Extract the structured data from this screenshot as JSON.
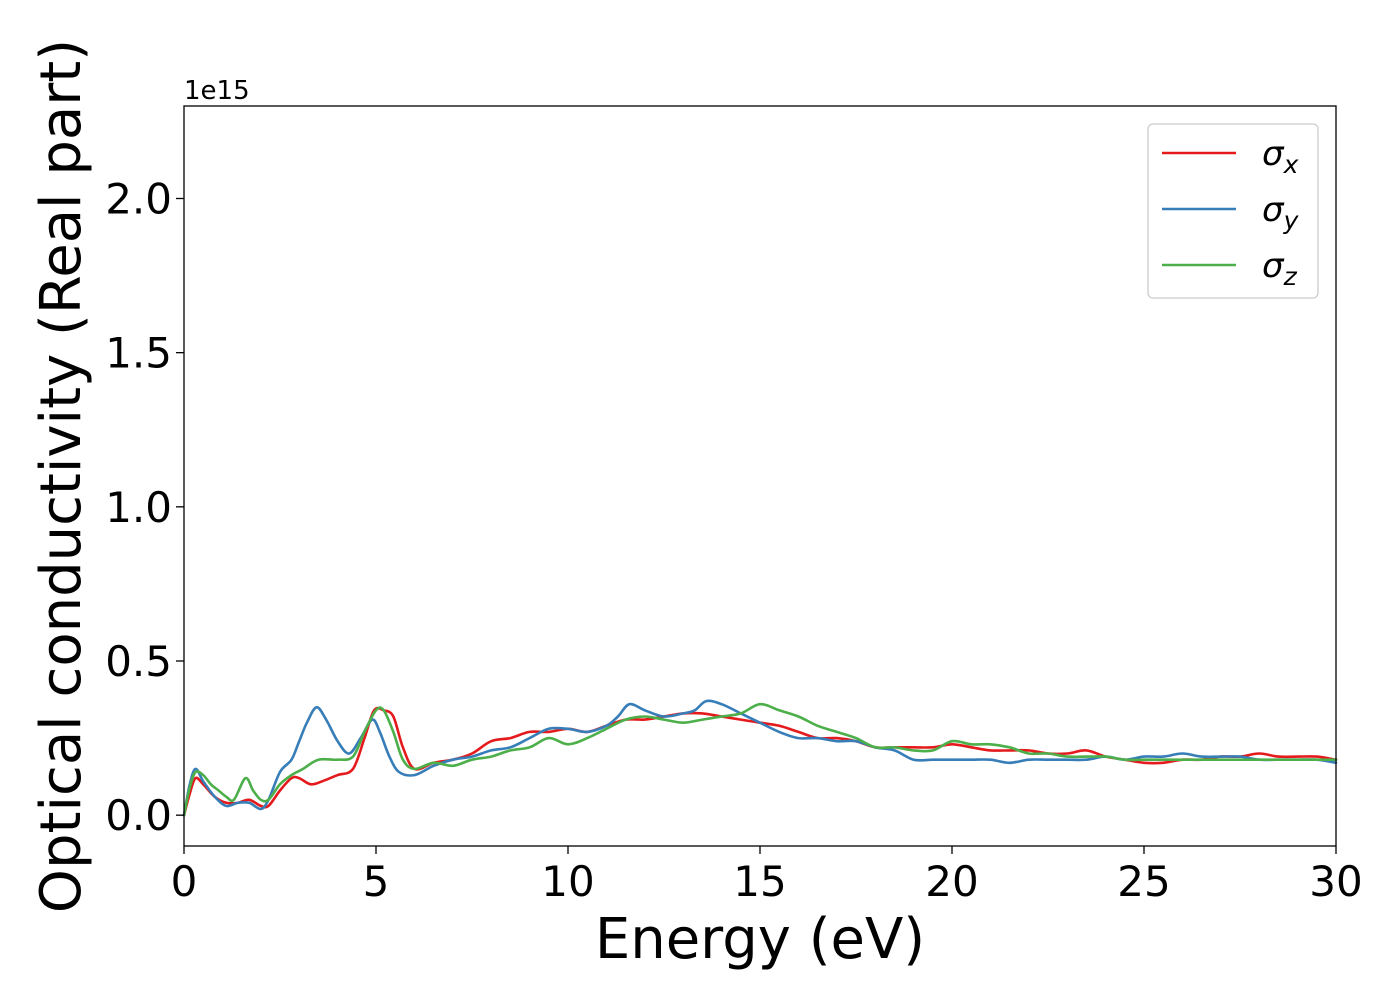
{
  "chart_data": {
    "type": "line",
    "offset_label": "1e15",
    "xlabel": "Energy (eV)",
    "ylabel": "Optical conductivity (Real part)",
    "xlim": [
      0,
      30
    ],
    "ylim": [
      -0.1,
      2.3
    ],
    "xticks": [
      0,
      5,
      10,
      15,
      20,
      25,
      30
    ],
    "yticks": [
      0.0,
      0.5,
      1.0,
      1.5,
      2.0
    ],
    "xtick_labels": [
      "0",
      "5",
      "10",
      "15",
      "20",
      "25",
      "30"
    ],
    "ytick_labels": [
      "0.0",
      "0.5",
      "1.0",
      "1.5",
      "2.0"
    ],
    "legend_position": "top-right",
    "grid": false,
    "series": [
      {
        "name": "σx",
        "base": "σ",
        "sub": "x",
        "color": "#e41a1c",
        "x": [
          0,
          0.15,
          0.3,
          0.5,
          0.8,
          1.1,
          1.4,
          1.7,
          2.0,
          2.2,
          2.5,
          2.8,
          3.0,
          3.3,
          3.6,
          4.0,
          4.4,
          4.7,
          4.95,
          5.2,
          5.45,
          5.7,
          6.0,
          6.5,
          7.0,
          7.5,
          8.0,
          8.5,
          9.0,
          9.5,
          10.0,
          10.5,
          11.0,
          11.5,
          12.0,
          12.5,
          13.0,
          13.5,
          14.0,
          14.5,
          15.0,
          15.5,
          16.0,
          16.5,
          17.0,
          17.5,
          18.0,
          18.5,
          19.0,
          19.5,
          20.0,
          20.5,
          21.0,
          21.5,
          22.0,
          22.5,
          23.0,
          23.5,
          24.0,
          24.5,
          25.0,
          25.5,
          26.0,
          26.5,
          27.0,
          27.5,
          28.0,
          28.5,
          29.0,
          29.5,
          30.0
        ],
        "y": [
          0.0,
          0.07,
          0.12,
          0.1,
          0.06,
          0.04,
          0.04,
          0.05,
          0.03,
          0.03,
          0.08,
          0.12,
          0.12,
          0.1,
          0.11,
          0.13,
          0.15,
          0.25,
          0.34,
          0.34,
          0.32,
          0.22,
          0.15,
          0.17,
          0.18,
          0.2,
          0.24,
          0.25,
          0.27,
          0.27,
          0.28,
          0.27,
          0.29,
          0.31,
          0.31,
          0.32,
          0.33,
          0.33,
          0.32,
          0.31,
          0.3,
          0.29,
          0.27,
          0.25,
          0.25,
          0.24,
          0.22,
          0.22,
          0.22,
          0.22,
          0.23,
          0.22,
          0.21,
          0.21,
          0.21,
          0.2,
          0.2,
          0.21,
          0.19,
          0.18,
          0.17,
          0.17,
          0.18,
          0.18,
          0.19,
          0.19,
          0.2,
          0.19,
          0.19,
          0.19,
          0.18
        ]
      },
      {
        "name": "σy",
        "base": "σ",
        "sub": "y",
        "color": "#377eb8",
        "x": [
          0,
          0.15,
          0.3,
          0.5,
          0.8,
          1.1,
          1.4,
          1.7,
          2.0,
          2.2,
          2.5,
          2.8,
          3.0,
          3.2,
          3.45,
          3.7,
          4.0,
          4.3,
          4.6,
          4.9,
          5.1,
          5.35,
          5.6,
          6.0,
          6.5,
          7.0,
          7.5,
          8.0,
          8.5,
          9.0,
          9.5,
          10.0,
          10.5,
          11.0,
          11.3,
          11.6,
          12.0,
          12.5,
          13.0,
          13.3,
          13.6,
          14.0,
          14.5,
          15.0,
          15.5,
          16.0,
          16.5,
          17.0,
          17.5,
          18.0,
          18.5,
          19.0,
          19.5,
          20.0,
          20.5,
          21.0,
          21.5,
          22.0,
          22.5,
          23.0,
          23.5,
          24.0,
          24.5,
          25.0,
          25.5,
          26.0,
          26.5,
          27.0,
          27.5,
          28.0,
          28.5,
          29.0,
          29.5,
          30.0
        ],
        "y": [
          0.0,
          0.1,
          0.15,
          0.11,
          0.06,
          0.03,
          0.04,
          0.04,
          0.02,
          0.05,
          0.14,
          0.18,
          0.24,
          0.3,
          0.35,
          0.31,
          0.24,
          0.2,
          0.25,
          0.31,
          0.27,
          0.19,
          0.14,
          0.13,
          0.16,
          0.18,
          0.19,
          0.21,
          0.22,
          0.25,
          0.28,
          0.28,
          0.27,
          0.29,
          0.32,
          0.36,
          0.34,
          0.32,
          0.33,
          0.34,
          0.37,
          0.36,
          0.33,
          0.3,
          0.27,
          0.25,
          0.25,
          0.24,
          0.24,
          0.22,
          0.21,
          0.18,
          0.18,
          0.18,
          0.18,
          0.18,
          0.17,
          0.18,
          0.18,
          0.18,
          0.18,
          0.19,
          0.18,
          0.19,
          0.19,
          0.2,
          0.19,
          0.19,
          0.19,
          0.18,
          0.18,
          0.18,
          0.18,
          0.17
        ]
      },
      {
        "name": "σz",
        "base": "σ",
        "sub": "z",
        "color": "#4daf4a",
        "x": [
          0,
          0.15,
          0.3,
          0.5,
          0.7,
          0.9,
          1.1,
          1.3,
          1.6,
          1.8,
          2.0,
          2.2,
          2.5,
          2.8,
          3.1,
          3.5,
          4.0,
          4.4,
          4.7,
          5.0,
          5.2,
          5.45,
          5.7,
          6.0,
          6.5,
          7.0,
          7.5,
          8.0,
          8.5,
          9.0,
          9.5,
          10.0,
          10.5,
          11.0,
          11.5,
          12.0,
          12.5,
          13.0,
          13.5,
          14.0,
          14.5,
          15.0,
          15.5,
          16.0,
          16.5,
          17.0,
          17.5,
          18.0,
          18.5,
          19.0,
          19.5,
          20.0,
          20.5,
          21.0,
          21.5,
          22.0,
          22.5,
          23.0,
          23.5,
          24.0,
          24.5,
          25.0,
          25.5,
          26.0,
          26.5,
          27.0,
          27.5,
          28.0,
          28.5,
          29.0,
          29.5,
          30.0
        ],
        "y": [
          0.0,
          0.09,
          0.14,
          0.13,
          0.1,
          0.08,
          0.06,
          0.05,
          0.12,
          0.08,
          0.05,
          0.05,
          0.1,
          0.13,
          0.15,
          0.18,
          0.18,
          0.19,
          0.27,
          0.34,
          0.34,
          0.27,
          0.18,
          0.15,
          0.17,
          0.16,
          0.18,
          0.19,
          0.21,
          0.22,
          0.25,
          0.23,
          0.25,
          0.28,
          0.31,
          0.32,
          0.31,
          0.3,
          0.31,
          0.32,
          0.33,
          0.36,
          0.34,
          0.32,
          0.29,
          0.27,
          0.25,
          0.22,
          0.22,
          0.21,
          0.21,
          0.24,
          0.23,
          0.23,
          0.22,
          0.2,
          0.2,
          0.19,
          0.19,
          0.19,
          0.18,
          0.18,
          0.18,
          0.18,
          0.18,
          0.18,
          0.18,
          0.18,
          0.18,
          0.18,
          0.18,
          0.18
        ]
      }
    ]
  }
}
